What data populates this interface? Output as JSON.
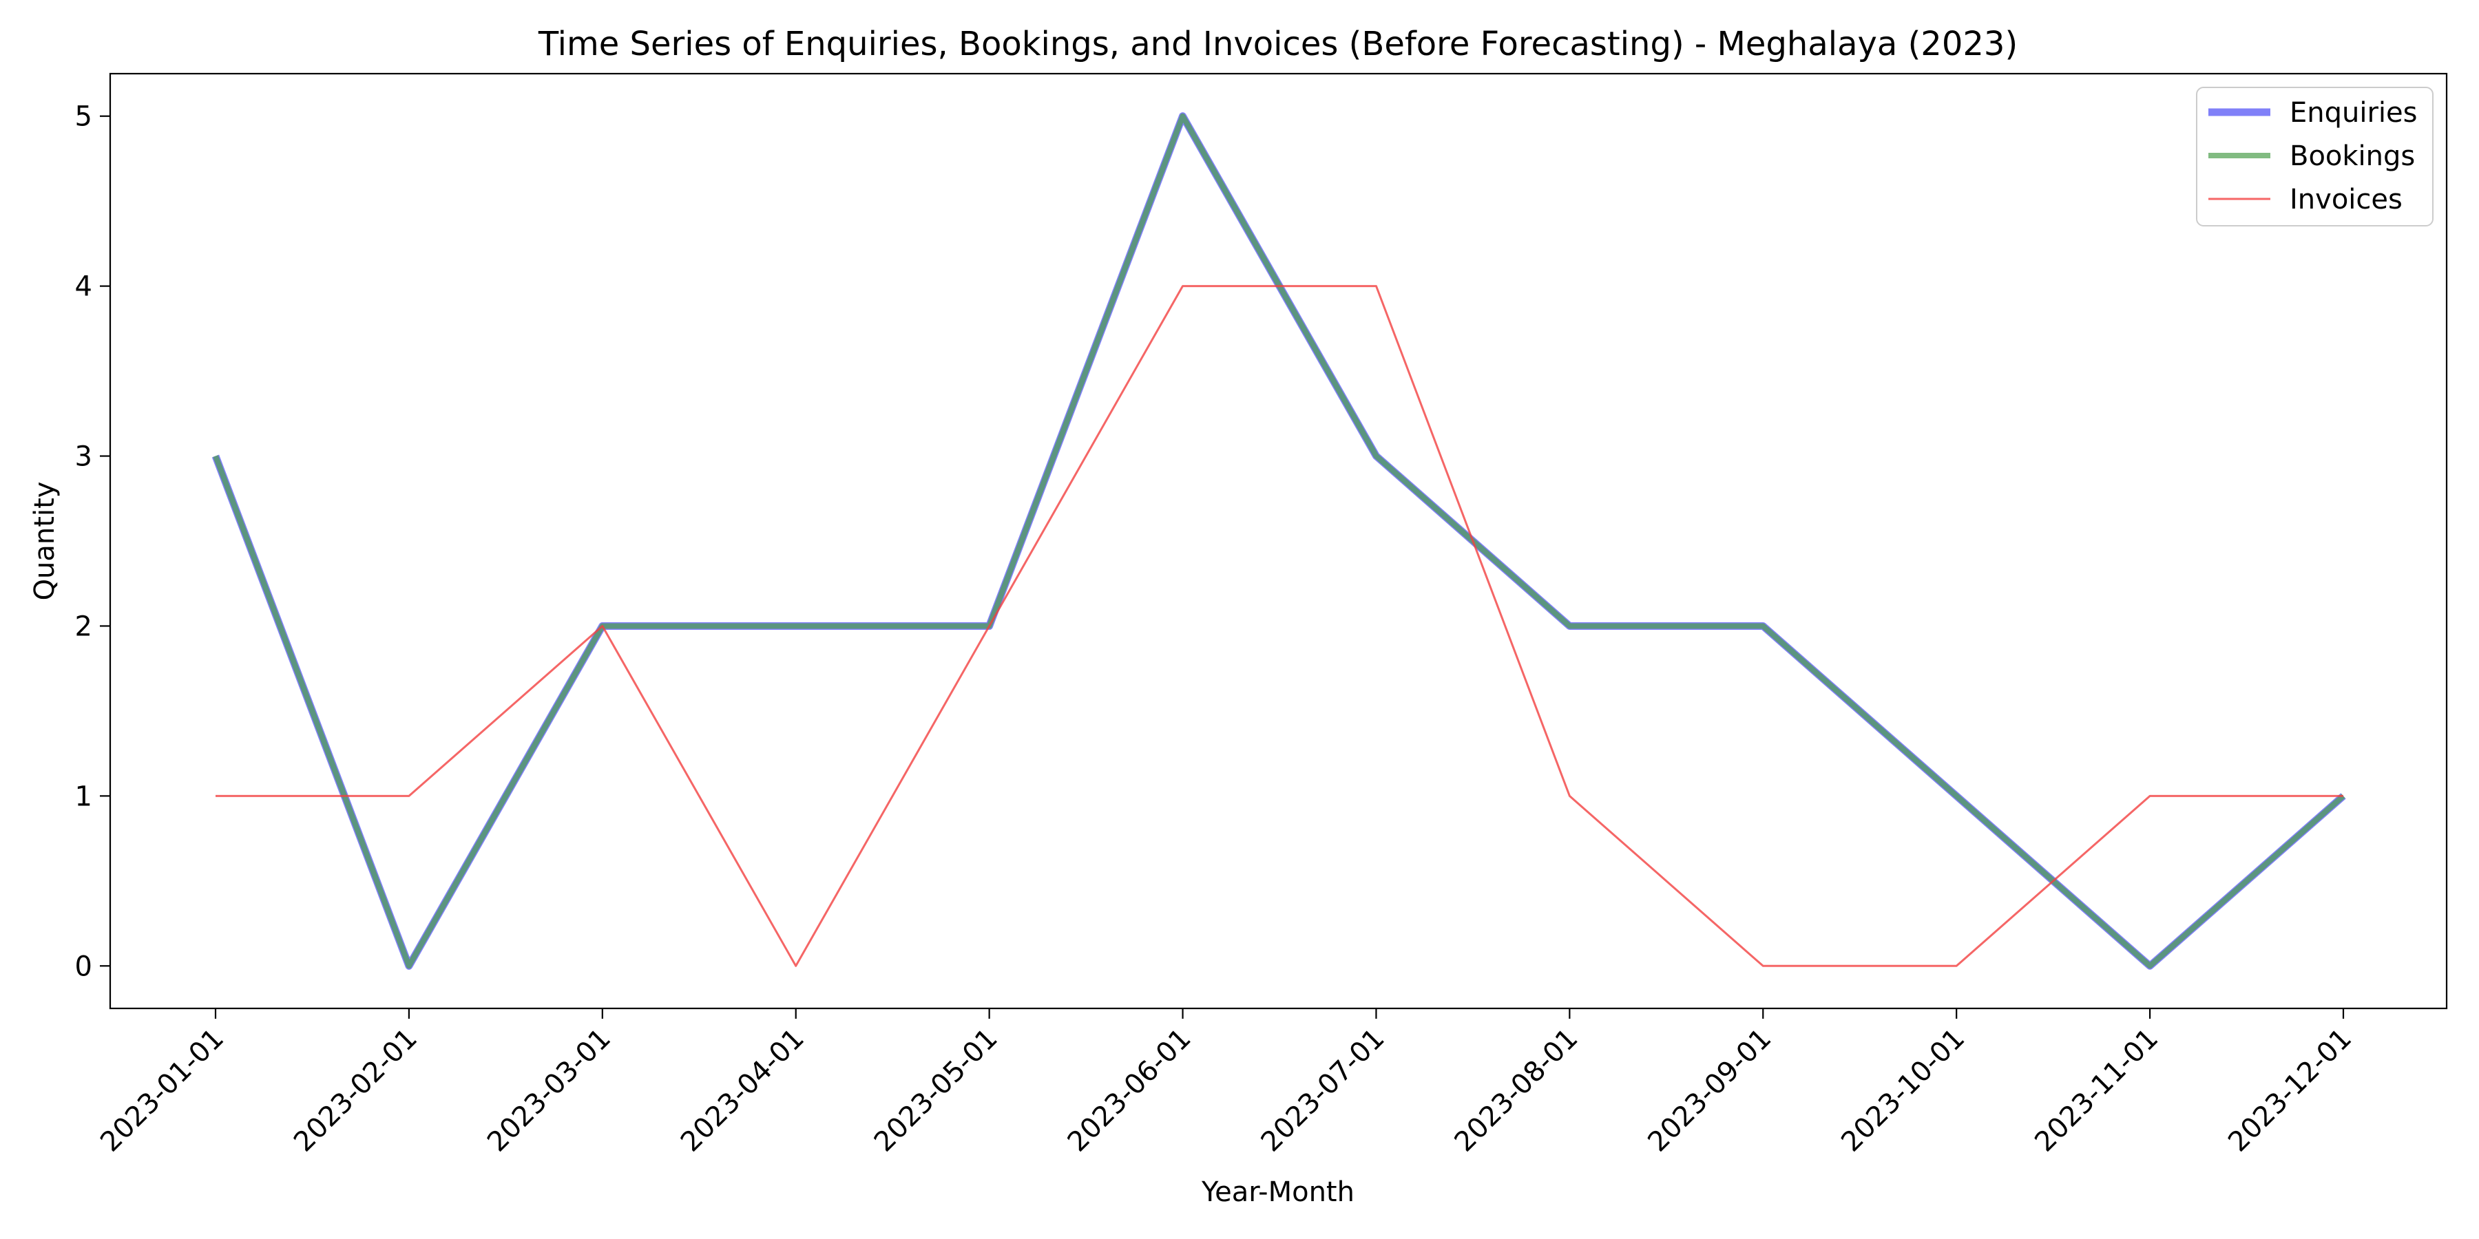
{
  "chart_data": {
    "type": "line",
    "title": "Time Series of Enquiries, Bookings, and Invoices (Before Forecasting) - Meghalaya (2023)",
    "xlabel": "Year-Month",
    "ylabel": "Quantity",
    "x": [
      "2023-01-01",
      "2023-02-01",
      "2023-03-01",
      "2023-04-01",
      "2023-05-01",
      "2023-06-01",
      "2023-07-01",
      "2023-08-01",
      "2023-09-01",
      "2023-10-01",
      "2023-11-01",
      "2023-12-01"
    ],
    "ylim": [
      -0.25,
      5.25
    ],
    "yticks": [
      0,
      1,
      2,
      3,
      4,
      5
    ],
    "grid": false,
    "legend_position": "top-right",
    "series": [
      {
        "name": "Enquiries",
        "color": "#4a4af5",
        "values": [
          3,
          0,
          2,
          2,
          2,
          5,
          3,
          2,
          2,
          1,
          0,
          1
        ]
      },
      {
        "name": "Bookings",
        "color": "#4c9e4c",
        "values": [
          3,
          0,
          2,
          2,
          2,
          5,
          3,
          2,
          2,
          1,
          0,
          1
        ]
      },
      {
        "name": "Invoices",
        "color": "#f24040",
        "values": [
          1,
          1,
          2,
          0,
          2,
          4,
          4,
          1,
          0,
          0,
          1,
          1
        ]
      }
    ]
  }
}
